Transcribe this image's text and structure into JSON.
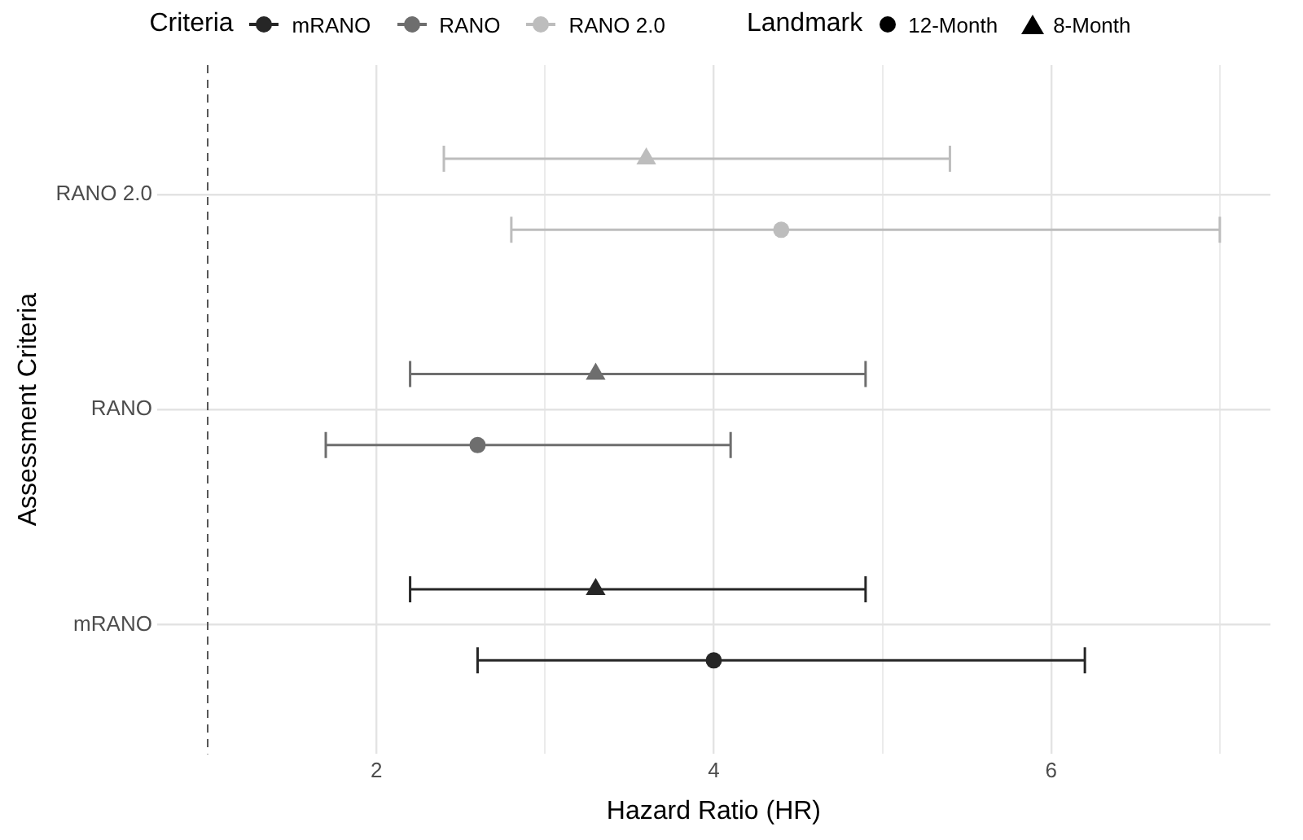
{
  "chart_data": {
    "type": "scatter",
    "orientation": "horizontal",
    "xlabel": "Hazard Ratio (HR)",
    "ylabel": "Assessment Criteria",
    "legend_title": [
      "Criteria",
      "Landmark"
    ],
    "legend": "top",
    "categories": [
      "RANO 2.0",
      "RANO",
      "mRANO"
    ],
    "series": [
      {
        "name": "8-Month",
        "marker": "triangle",
        "colors": [
          "#bdbdbd",
          "#6e6e6e",
          "#262626"
        ],
        "values": [
          3.6,
          3.3,
          3.3
        ],
        "errors": [
          [
            2.4,
            5.4
          ],
          [
            2.2,
            4.9
          ],
          [
            2.2,
            4.9
          ]
        ]
      },
      {
        "name": "12-Month",
        "marker": "circle",
        "colors": [
          "#bdbdbd",
          "#6e6e6e",
          "#262626"
        ],
        "values": [
          4.4,
          2.6,
          4.0
        ],
        "errors": [
          [
            2.8,
            7.0
          ],
          [
            1.7,
            4.1
          ],
          [
            2.6,
            6.2
          ]
        ]
      }
    ],
    "xlim": [
      0.7,
      7.3
    ],
    "xticks": [
      2,
      {
        "value": 3,
        "label": null
      },
      4,
      {
        "value": 5,
        "label": null
      },
      6,
      {
        "value": 7,
        "label": null
      }
    ],
    "ref_lines": [
      {
        "axis": "x",
        "value": 1,
        "color": "#555555",
        "line_style": "dashed"
      }
    ],
    "grid": true
  }
}
